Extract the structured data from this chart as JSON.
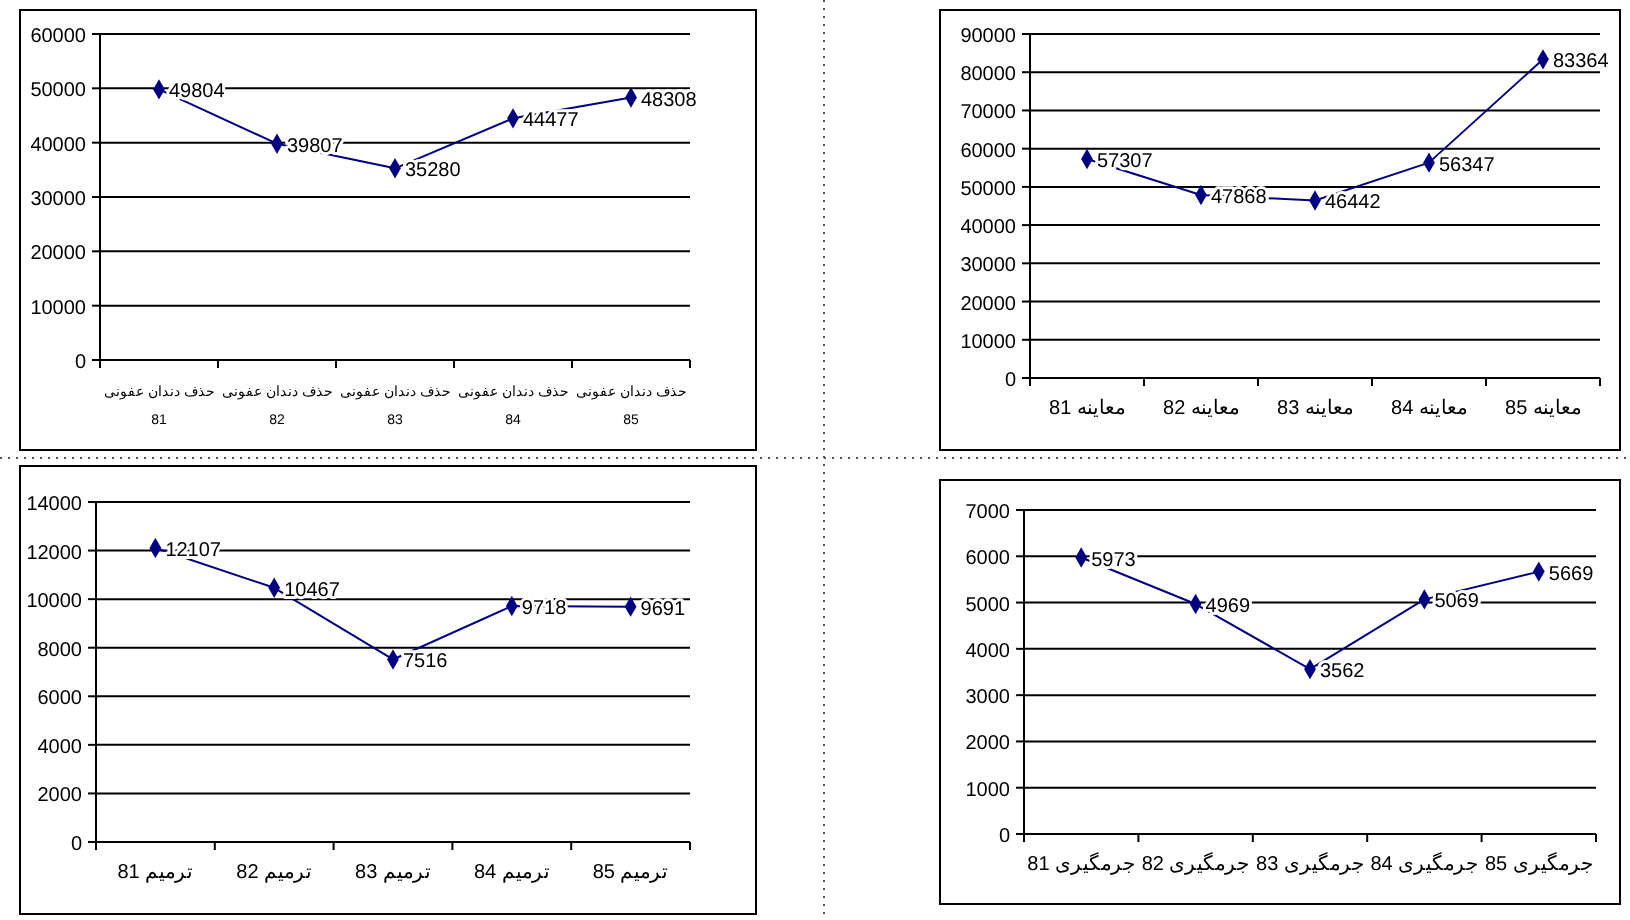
{
  "chart_data": [
    {
      "type": "line",
      "categories": [
        "حذف دندان عفونی 81",
        "حذف دندان عفونی 82",
        "حذف دندان عفونی 83",
        "حذف دندان عفونی 84",
        "حذف دندان عفونی 85"
      ],
      "series": [
        {
          "color": "#000080",
          "values": [
            49804,
            39807,
            35280,
            44477,
            48308
          ]
        }
      ],
      "ylim": [
        0,
        60000
      ],
      "yticks": [
        0,
        10000,
        20000,
        30000,
        40000,
        50000,
        60000
      ],
      "grid": "y",
      "marker": "diamond",
      "data_labels": true
    },
    {
      "type": "line",
      "categories": [
        "معاینه 81",
        "معاینه 82",
        "معاینه 83",
        "معاینه 84",
        "معاینه 85"
      ],
      "series": [
        {
          "color": "#000080",
          "values": [
            57307,
            47868,
            46442,
            56347,
            83364
          ]
        }
      ],
      "ylim": [
        0,
        90000
      ],
      "yticks": [
        0,
        10000,
        20000,
        30000,
        40000,
        50000,
        60000,
        70000,
        80000,
        90000
      ],
      "grid": "y",
      "marker": "diamond",
      "data_labels": true
    },
    {
      "type": "line",
      "categories": [
        "ترمیم 81",
        "ترمیم 82",
        "ترمیم 83",
        "ترمیم 84",
        "ترمیم 85"
      ],
      "series": [
        {
          "color": "#000080",
          "values": [
            12107,
            10467,
            7516,
            9718,
            9691
          ]
        }
      ],
      "ylim": [
        0,
        14000
      ],
      "yticks": [
        0,
        2000,
        4000,
        6000,
        8000,
        10000,
        12000,
        14000
      ],
      "grid": "y",
      "marker": "diamond",
      "data_labels": true
    },
    {
      "type": "line",
      "categories": [
        "جرمگیری 81",
        "جرمگیری 82",
        "جرمگیری 83",
        "جرمگیری 84",
        "جرمگیری 85"
      ],
      "series": [
        {
          "color": "#000080",
          "values": [
            5973,
            4969,
            3562,
            5069,
            5669
          ]
        }
      ],
      "ylim": [
        0,
        7000
      ],
      "yticks": [
        0,
        1000,
        2000,
        3000,
        4000,
        5000,
        6000,
        7000
      ],
      "grid": "y",
      "marker": "diamond",
      "data_labels": true
    }
  ]
}
